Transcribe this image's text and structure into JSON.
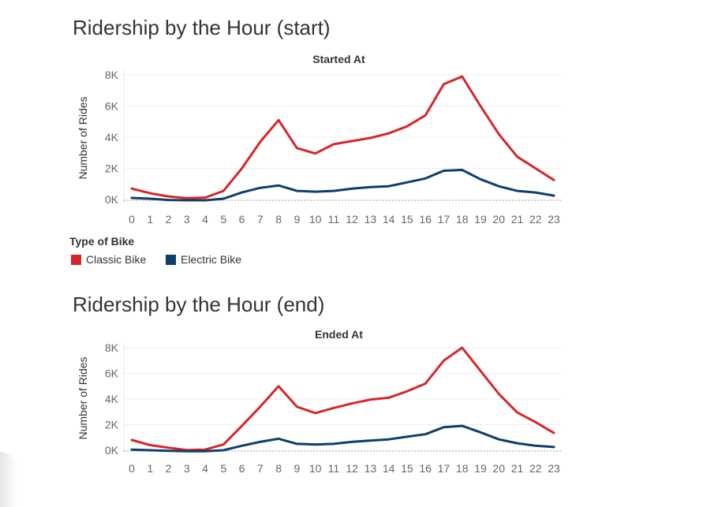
{
  "legend": {
    "title": "Type of Bike",
    "items": [
      {
        "label": "Classic Bike",
        "color": "#d62728"
      },
      {
        "label": "Electric Bike",
        "color": "#0e3e6e"
      }
    ]
  },
  "chart_data": [
    {
      "type": "line",
      "title": "Ridership by the Hour (start)",
      "subtitle": "Started At",
      "xlabel": "",
      "ylabel": "Number of Rides",
      "x": [
        0,
        1,
        2,
        3,
        4,
        5,
        6,
        7,
        8,
        9,
        10,
        11,
        12,
        13,
        14,
        15,
        16,
        17,
        18,
        19,
        20,
        21,
        22,
        23
      ],
      "ylim": [
        0,
        8000
      ],
      "yticks": [
        0,
        2000,
        4000,
        6000,
        8000
      ],
      "ytick_labels": [
        "0K",
        "2K",
        "4K",
        "6K",
        "8K"
      ],
      "grid": true,
      "series": [
        {
          "name": "Classic Bike",
          "color": "#d62728",
          "values": [
            700,
            400,
            200,
            80,
            120,
            550,
            2000,
            3700,
            5100,
            3300,
            2950,
            3550,
            3750,
            3950,
            4250,
            4700,
            5400,
            7400,
            7900,
            6000,
            4200,
            2750,
            2000,
            1250
          ]
        },
        {
          "name": "Electric Bike",
          "color": "#0e3e6e",
          "values": [
            100,
            50,
            -30,
            -50,
            -50,
            50,
            450,
            750,
            900,
            550,
            500,
            550,
            700,
            800,
            850,
            1100,
            1350,
            1850,
            1900,
            1300,
            850,
            550,
            450,
            250
          ]
        }
      ]
    },
    {
      "type": "line",
      "title": "Ridership by the Hour (end)",
      "subtitle": "Ended At",
      "xlabel": "",
      "ylabel": "Number of Rides",
      "x": [
        0,
        1,
        2,
        3,
        4,
        5,
        6,
        7,
        8,
        9,
        10,
        11,
        12,
        13,
        14,
        15,
        16,
        17,
        18,
        19,
        20,
        21,
        22,
        23
      ],
      "ylim": [
        0,
        8000
      ],
      "yticks": [
        0,
        2000,
        4000,
        6000,
        8000
      ],
      "ytick_labels": [
        "0K",
        "2K",
        "4K",
        "6K",
        "8K"
      ],
      "grid": true,
      "series": [
        {
          "name": "Classic Bike",
          "color": "#d62728",
          "values": [
            800,
            400,
            200,
            20,
            50,
            450,
            1900,
            3400,
            5000,
            3400,
            2900,
            3300,
            3650,
            3950,
            4100,
            4600,
            5200,
            7000,
            8000,
            6200,
            4400,
            2950,
            2200,
            1350
          ]
        },
        {
          "name": "Electric Bike",
          "color": "#0e3e6e",
          "values": [
            50,
            0,
            -50,
            -80,
            -80,
            0,
            350,
            650,
            900,
            500,
            450,
            500,
            650,
            750,
            850,
            1050,
            1250,
            1800,
            1900,
            1400,
            850,
            550,
            350,
            250
          ]
        }
      ]
    }
  ]
}
